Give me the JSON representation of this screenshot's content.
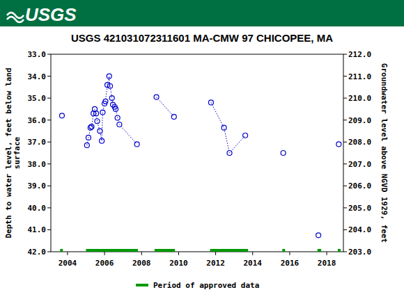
{
  "chart_data": {
    "type": "line",
    "title": "USGS 421031072311601 MA-CMW 97 CHICOPEE, MA",
    "annotations": [
      "USGS"
    ],
    "y_label": [
      "Depth to water level, feet below land",
      "surface"
    ],
    "y2_label": "Groundwater level above NGVD 1929, feet",
    "xlim": [
      2003.1,
      2018.9
    ],
    "xticks": [
      2004,
      2006,
      2008,
      2010,
      2012,
      2014,
      2016,
      2018
    ],
    "ylim": [
      42,
      33
    ],
    "yticks": [
      {
        "value": 33,
        "label": "33.0"
      },
      {
        "value": 34,
        "label": "34.0"
      },
      {
        "value": 35,
        "label": "35.0"
      },
      {
        "value": 36,
        "label": "36.0"
      },
      {
        "value": 37,
        "label": "37.0"
      },
      {
        "value": 38,
        "label": "38.0"
      },
      {
        "value": 39,
        "label": "39.0"
      },
      {
        "value": 40,
        "label": "40.0"
      },
      {
        "value": 41,
        "label": "41.0"
      },
      {
        "value": 42,
        "label": "42.0"
      }
    ],
    "y2lim": [
      203,
      212
    ],
    "y2ticks": [
      {
        "value": 203,
        "label": "203.0"
      },
      {
        "value": 204,
        "label": "204.0"
      },
      {
        "value": 205,
        "label": "205.0"
      },
      {
        "value": 206,
        "label": "206.0"
      },
      {
        "value": 207,
        "label": "207.0"
      },
      {
        "value": 208,
        "label": "208.0"
      },
      {
        "value": 209,
        "label": "209.0"
      },
      {
        "value": 210,
        "label": "210.0"
      },
      {
        "value": 211,
        "label": "211.0"
      },
      {
        "value": 212,
        "label": "212.0"
      }
    ],
    "grid": false,
    "legend": "bottom",
    "series": [
      {
        "color": "#0000cc",
        "marker": "circle",
        "line_style": "dotted",
        "x": [
          2003.7,
          null,
          2005.05,
          2005.13,
          2005.24,
          2005.3,
          2005.4,
          2005.47,
          2005.55,
          2005.6,
          2005.75,
          2005.85,
          2005.9,
          2006.0,
          2006.05,
          2006.15,
          2006.25,
          2006.3,
          2006.4,
          2006.45,
          2006.55,
          2006.6,
          2006.7,
          2006.8,
          2007.75,
          null,
          2008.8,
          2009.75,
          null,
          2011.75,
          2012.45,
          2012.75,
          2013.6,
          null,
          2015.65,
          null,
          2017.55,
          null,
          2018.65
        ],
        "values": [
          35.8,
          null,
          37.15,
          36.8,
          36.35,
          36.3,
          35.7,
          35.5,
          35.7,
          36.05,
          36.5,
          36.95,
          35.65,
          35.25,
          35.15,
          34.4,
          34.0,
          34.45,
          35.0,
          35.3,
          35.4,
          35.5,
          35.9,
          36.2,
          37.1,
          null,
          34.95,
          35.85,
          null,
          35.2,
          36.35,
          37.5,
          36.7,
          null,
          37.5,
          null,
          41.25,
          null,
          37.1
        ]
      },
      {
        "name": "Period of approved data",
        "color": "#009900",
        "type": "range",
        "start": [
          2003.6,
          2005.0,
          2008.7,
          2011.7,
          2015.6,
          2017.5,
          2018.6
        ],
        "end": [
          2003.75,
          2007.8,
          2009.8,
          2013.75,
          2015.75,
          2017.7,
          2018.75
        ]
      }
    ]
  }
}
